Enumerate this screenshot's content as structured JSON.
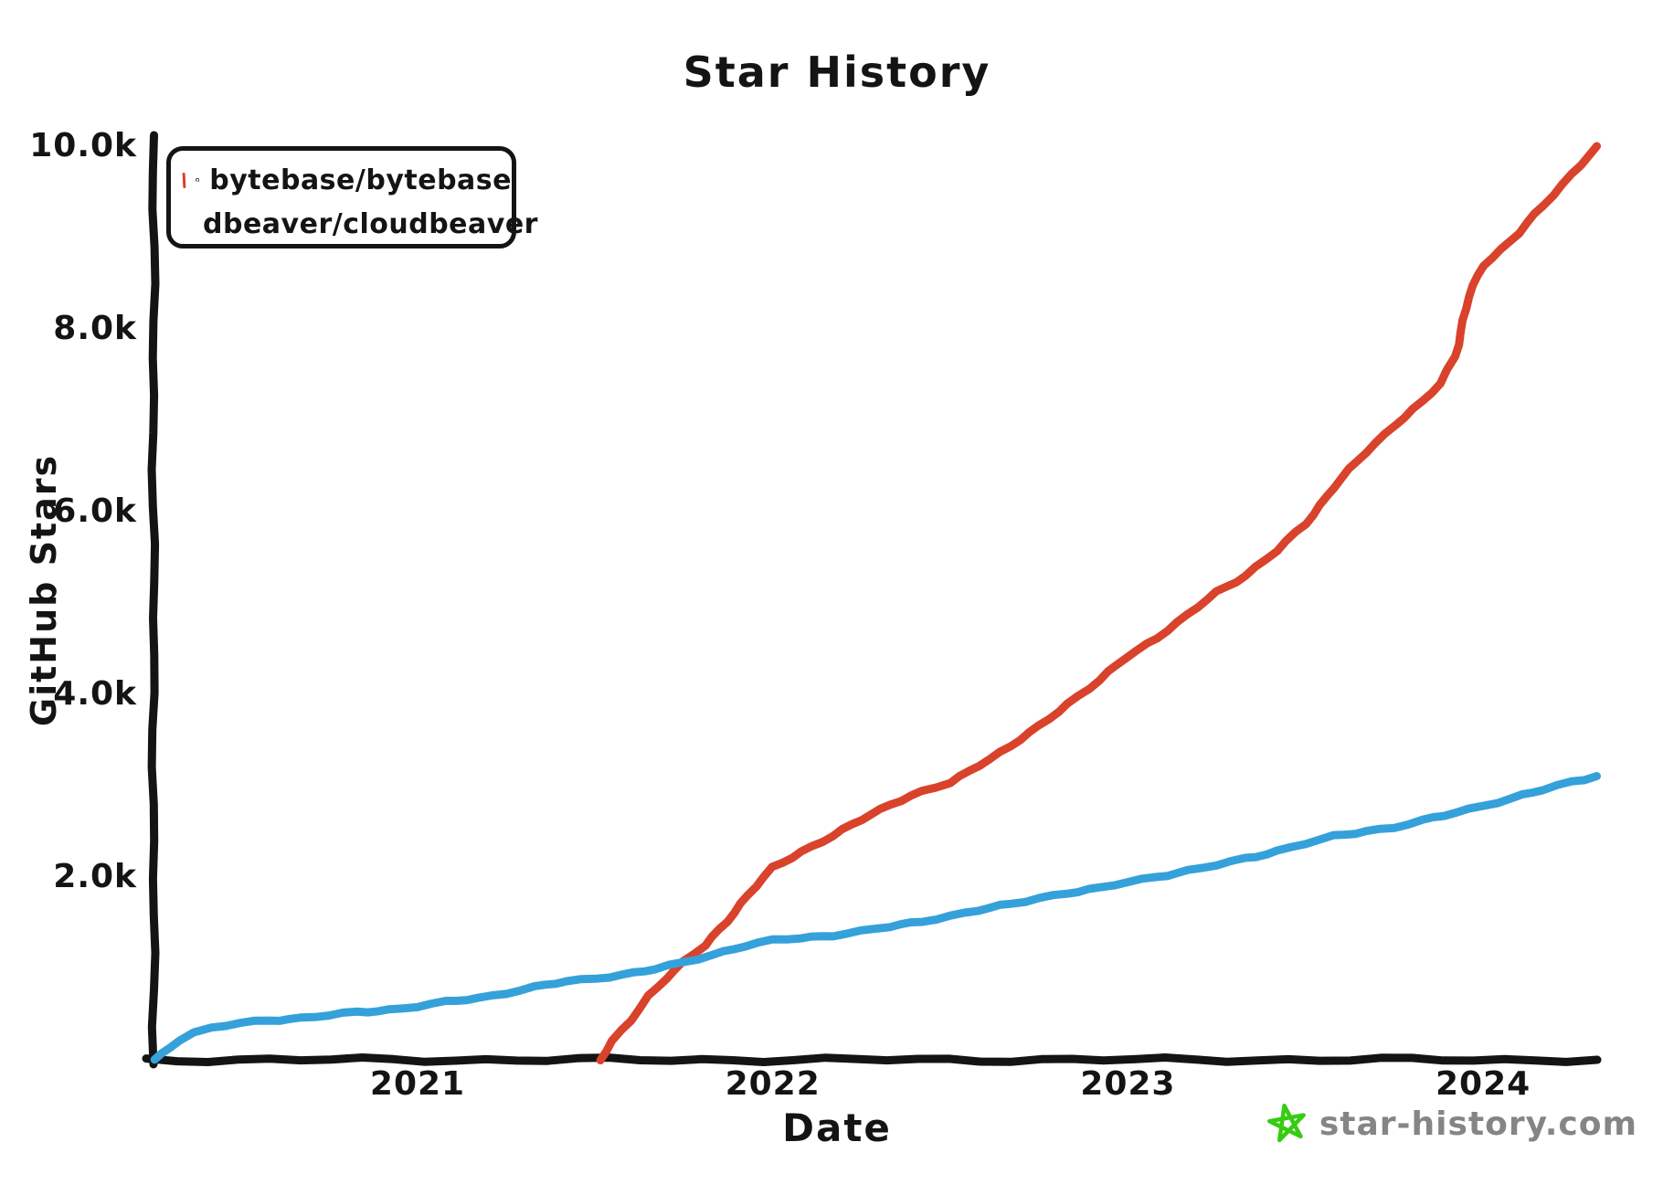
{
  "title": "Star History",
  "watermark": {
    "text": "star-history.com",
    "text_color": "#858585",
    "star_color": "#35cc12"
  },
  "colors": {
    "axis": "#141414",
    "background": "#ffffff"
  },
  "chart_data": {
    "type": "line",
    "title": "Star History",
    "xlabel": "Date",
    "ylabel": "GitHub Stars",
    "ylim": [
      0,
      10000
    ],
    "x_range_years": [
      2020.26,
      2024.32
    ],
    "grid": false,
    "legend_position": "top-left",
    "y_ticks": [
      {
        "label": "2.0k",
        "value": 2000
      },
      {
        "label": "4.0k",
        "value": 4000
      },
      {
        "label": "6.0k",
        "value": 6000
      },
      {
        "label": "8.0k",
        "value": 8000
      },
      {
        "label": "10.0k",
        "value": 10000
      }
    ],
    "x_ticks": [
      {
        "label": "2021",
        "year": 2021
      },
      {
        "label": "2022",
        "year": 2022
      },
      {
        "label": "2023",
        "year": 2023
      },
      {
        "label": "2024",
        "year": 2024
      }
    ],
    "series": [
      {
        "name": "bytebase/bytebase",
        "color": "#d9422b",
        "icon": "github-octocat",
        "points": [
          [
            2021.513,
            0
          ],
          [
            2021.55,
            200
          ],
          [
            2021.6,
            430
          ],
          [
            2021.65,
            700
          ],
          [
            2021.7,
            900
          ],
          [
            2021.75,
            1070
          ],
          [
            2021.81,
            1250
          ],
          [
            2021.87,
            1520
          ],
          [
            2021.93,
            1800
          ],
          [
            2022.0,
            2100
          ],
          [
            2022.08,
            2280
          ],
          [
            2022.17,
            2450
          ],
          [
            2022.25,
            2630
          ],
          [
            2022.33,
            2800
          ],
          [
            2022.42,
            2930
          ],
          [
            2022.5,
            3030
          ],
          [
            2022.58,
            3230
          ],
          [
            2022.67,
            3430
          ],
          [
            2022.75,
            3650
          ],
          [
            2022.83,
            3900
          ],
          [
            2022.92,
            4150
          ],
          [
            2023.0,
            4420
          ],
          [
            2023.08,
            4620
          ],
          [
            2023.17,
            4870
          ],
          [
            2023.25,
            5120
          ],
          [
            2023.33,
            5300
          ],
          [
            2023.42,
            5570
          ],
          [
            2023.5,
            5870
          ],
          [
            2023.58,
            6270
          ],
          [
            2023.67,
            6650
          ],
          [
            2023.75,
            6950
          ],
          [
            2023.83,
            7200
          ],
          [
            2023.88,
            7400
          ],
          [
            2023.92,
            7700
          ],
          [
            2023.96,
            8350
          ],
          [
            2024.0,
            8700
          ],
          [
            2024.05,
            8870
          ],
          [
            2024.1,
            9050
          ],
          [
            2024.17,
            9350
          ],
          [
            2024.25,
            9700
          ],
          [
            2024.32,
            10000
          ]
        ]
      },
      {
        "name": "dbeaver/cloudbeaver",
        "color": "#35a1da",
        "icon": "dbeaver-beaver",
        "points": [
          [
            2020.26,
            0
          ],
          [
            2020.28,
            70
          ],
          [
            2020.3,
            140
          ],
          [
            2020.33,
            220
          ],
          [
            2020.37,
            290
          ],
          [
            2020.42,
            345
          ],
          [
            2020.5,
            400
          ],
          [
            2020.58,
            435
          ],
          [
            2020.67,
            455
          ],
          [
            2020.75,
            485
          ],
          [
            2020.83,
            520
          ],
          [
            2020.92,
            550
          ],
          [
            2021.0,
            585
          ],
          [
            2021.08,
            630
          ],
          [
            2021.17,
            675
          ],
          [
            2021.25,
            735
          ],
          [
            2021.33,
            795
          ],
          [
            2021.42,
            855
          ],
          [
            2021.5,
            895
          ],
          [
            2021.58,
            935
          ],
          [
            2021.67,
            990
          ],
          [
            2021.75,
            1065
          ],
          [
            2021.83,
            1155
          ],
          [
            2021.92,
            1245
          ],
          [
            2022.0,
            1305
          ],
          [
            2022.08,
            1335
          ],
          [
            2022.17,
            1365
          ],
          [
            2022.25,
            1405
          ],
          [
            2022.33,
            1455
          ],
          [
            2022.42,
            1520
          ],
          [
            2022.5,
            1575
          ],
          [
            2022.58,
            1635
          ],
          [
            2022.67,
            1705
          ],
          [
            2022.75,
            1775
          ],
          [
            2022.83,
            1825
          ],
          [
            2022.92,
            1875
          ],
          [
            2023.0,
            1950
          ],
          [
            2023.08,
            2005
          ],
          [
            2023.17,
            2065
          ],
          [
            2023.25,
            2130
          ],
          [
            2023.33,
            2205
          ],
          [
            2023.42,
            2285
          ],
          [
            2023.5,
            2365
          ],
          [
            2023.58,
            2445
          ],
          [
            2023.67,
            2505
          ],
          [
            2023.75,
            2545
          ],
          [
            2023.83,
            2615
          ],
          [
            2023.92,
            2705
          ],
          [
            2024.0,
            2785
          ],
          [
            2024.08,
            2860
          ],
          [
            2024.17,
            2955
          ],
          [
            2024.25,
            3045
          ],
          [
            2024.32,
            3105
          ]
        ]
      }
    ]
  }
}
